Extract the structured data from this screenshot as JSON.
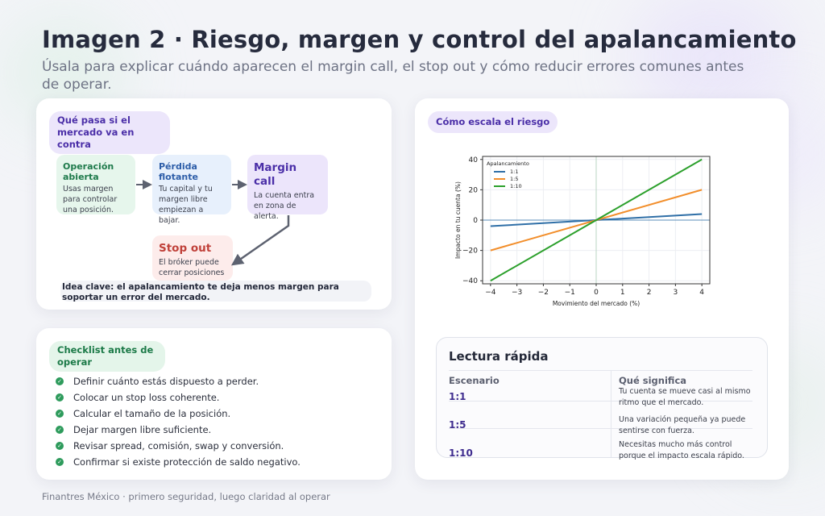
{
  "header": {
    "title": "Imagen 2 · Riesgo, margen y control del apalancamiento",
    "subtitle": "Úsala para explicar cuándo aparecen el margin call, el stop out y cómo reducir errores comunes antes de operar."
  },
  "flow_card": {
    "pill": "Qué pasa si el mercado va en contra",
    "boxes": {
      "open": {
        "title": "Operación abierta",
        "desc": "Usas margen para controlar una posición."
      },
      "loss": {
        "title": "Pérdida flotante",
        "desc": "Tu capital y tu margen libre empiezan a bajar."
      },
      "margin_call": {
        "title": "Margin call",
        "desc": "La cuenta entra en zona de alerta."
      },
      "stop_out": {
        "title": "Stop out",
        "desc": "El bróker puede cerrar posiciones"
      }
    },
    "key_idea": "Idea clave: el apalancamiento te deja menos margen para soportar un error del mercado."
  },
  "checklist_card": {
    "pill": "Checklist antes de operar",
    "items": [
      "Definir cuánto estás dispuesto a perder.",
      "Colocar un stop loss coherente.",
      "Calcular el tamaño de la posición.",
      "Dejar margen libre suficiente.",
      "Revisar spread, comisión, swap y conversión.",
      "Confirmar si existe protección de saldo negativo."
    ]
  },
  "risk_card": {
    "pill": "Cómo escala el riesgo",
    "quick_read": {
      "title": "Lectura rápida",
      "col1_header": "Escenario",
      "col2_header": "Qué significa",
      "rows": [
        {
          "scenario": "1:1",
          "meaning": "Tu cuenta se mueve casi al mismo ritmo que el mercado."
        },
        {
          "scenario": "1:5",
          "meaning": "Una variación pequeña ya puede sentirse con fuerza."
        },
        {
          "scenario": "1:10",
          "meaning": "Necesitas mucho más control porque el impacto escala rápido."
        }
      ]
    }
  },
  "chart_data": {
    "type": "line",
    "title": "",
    "xlabel": "Movimiento del mercado (%)",
    "ylabel": "Impacto en tu cuenta (%)",
    "xlim": [
      -4.3,
      4.3
    ],
    "ylim": [
      -42,
      42
    ],
    "xticks": [
      -4,
      -3,
      -2,
      -1,
      0,
      1,
      2,
      3,
      4
    ],
    "yticks": [
      -40,
      -20,
      0,
      20,
      40
    ],
    "grid": true,
    "legend_title": "Apalancamiento",
    "legend_position": "top-left",
    "x": [
      -4,
      4
    ],
    "series": [
      {
        "name": "1:1",
        "values": [
          -4,
          4
        ],
        "color": "#2f6fa7"
      },
      {
        "name": "1:5",
        "values": [
          -20,
          20
        ],
        "color": "#f28e2b"
      },
      {
        "name": "1:10",
        "values": [
          -40,
          40
        ],
        "color": "#2ca02c"
      }
    ]
  },
  "footer": "Finantres México · primero seguridad, luego claridad al operar"
}
